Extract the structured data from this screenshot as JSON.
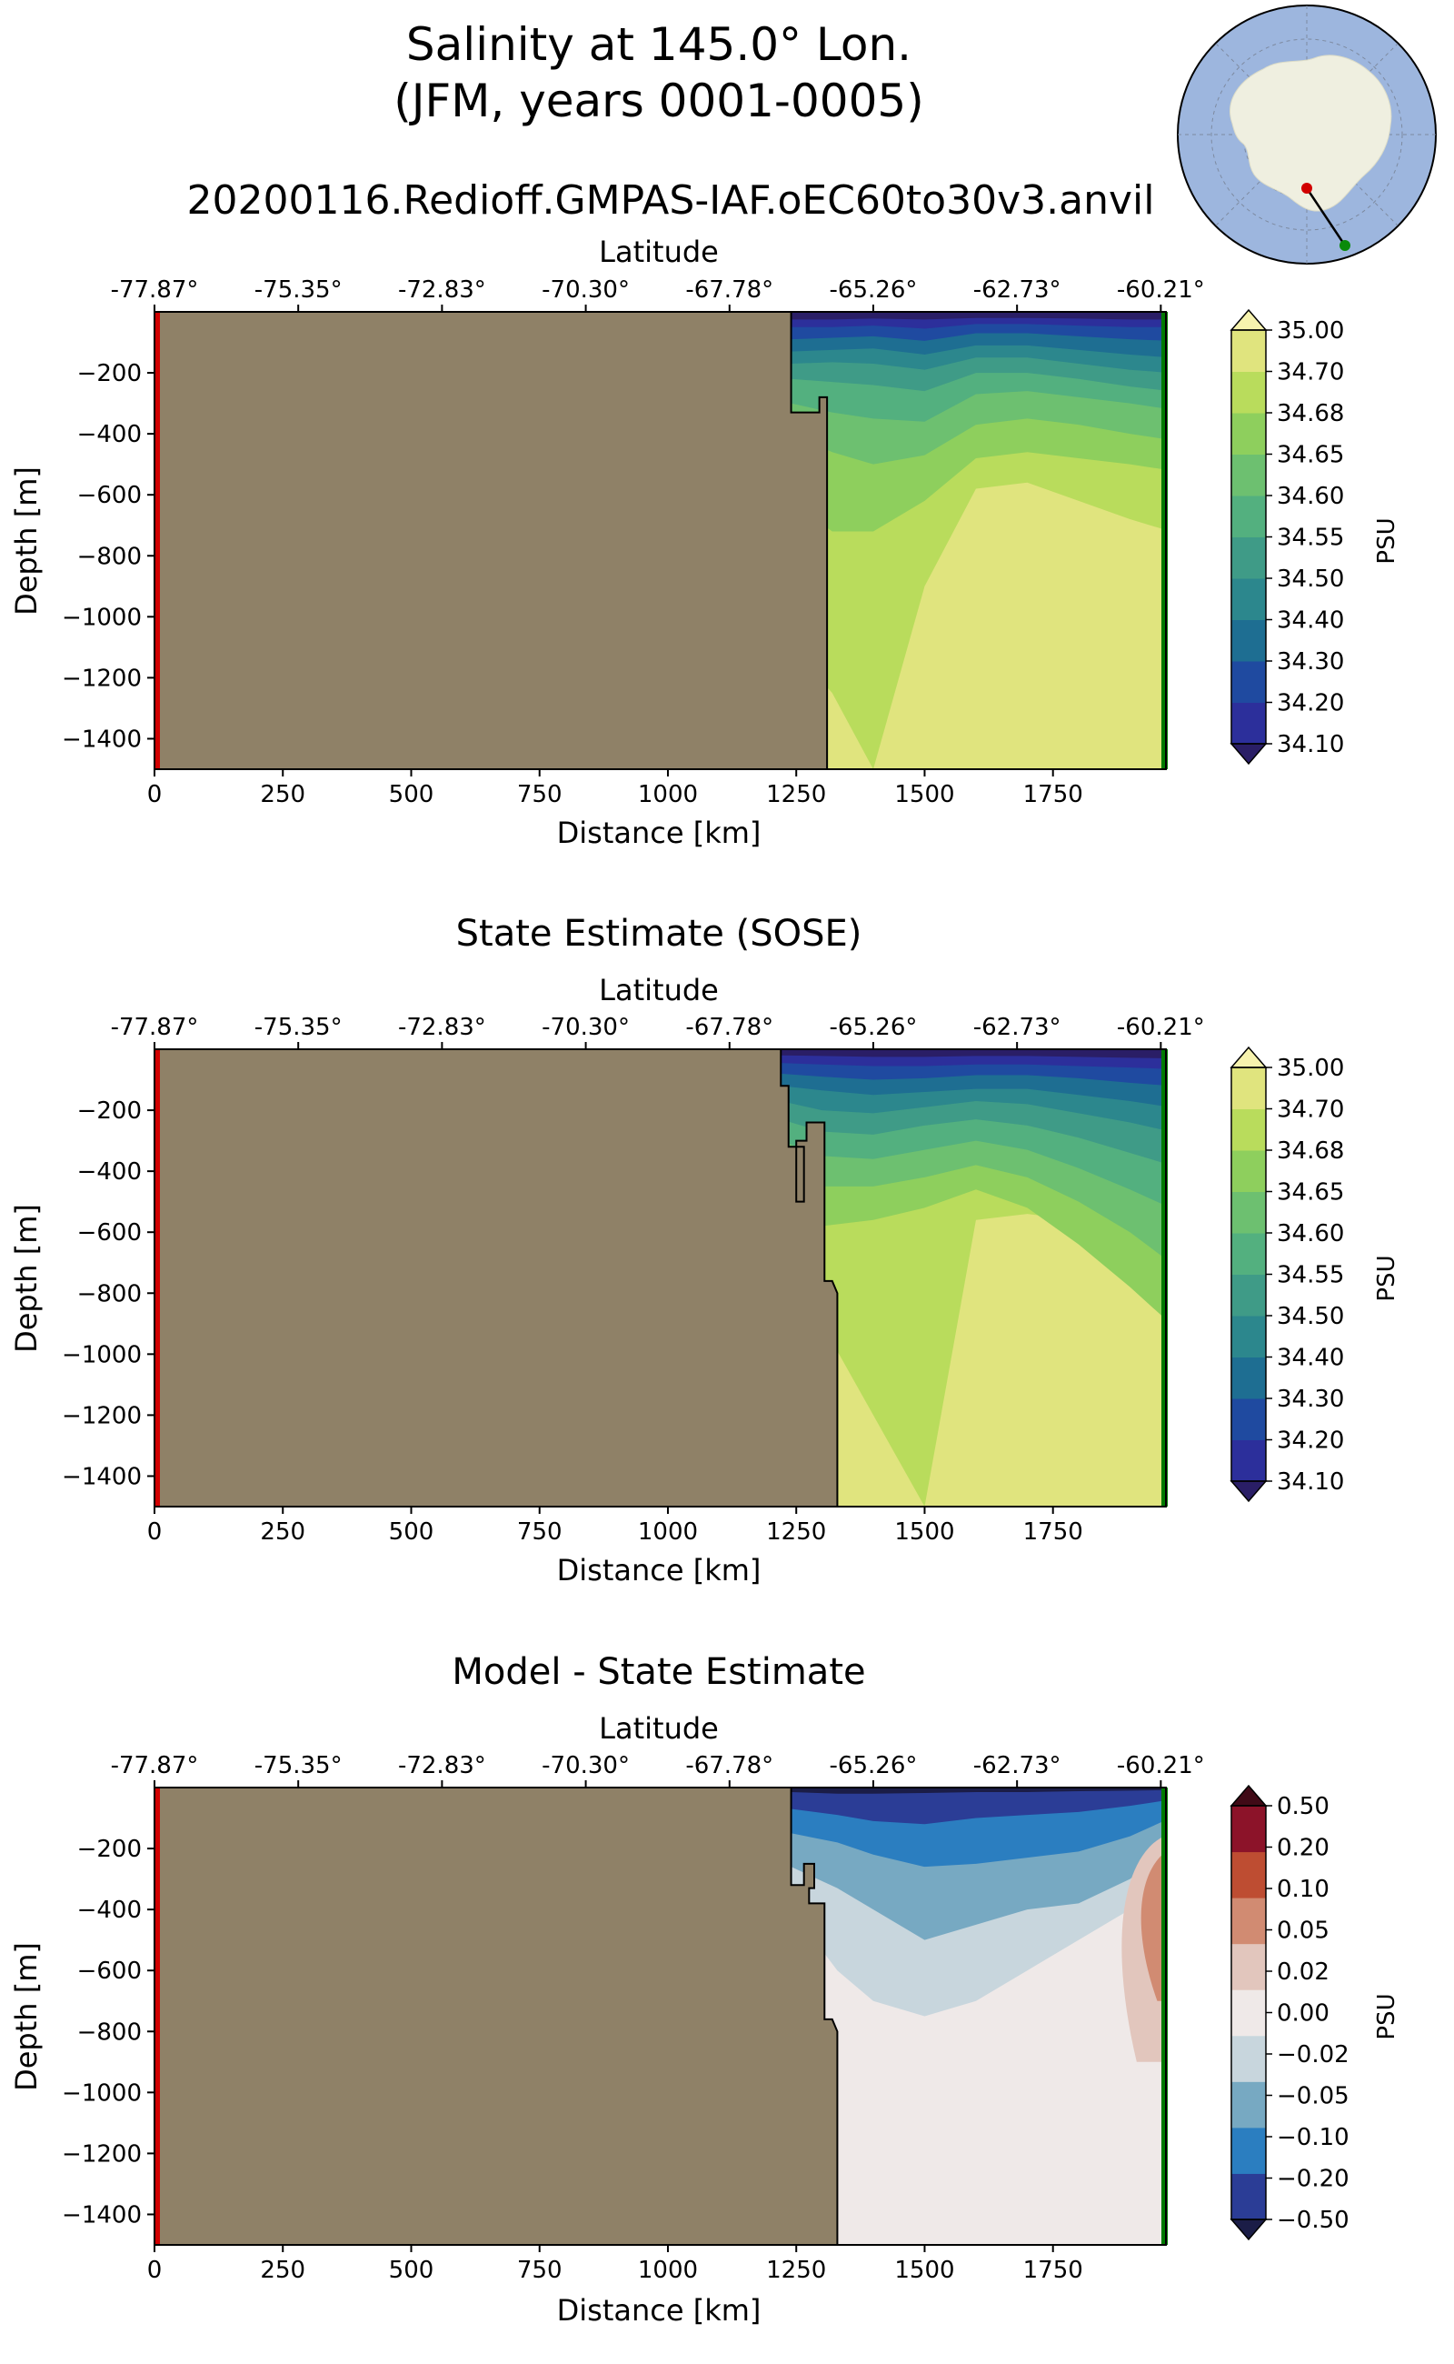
{
  "figure": {
    "title_line1": "Salinity at 145.0° Lon.",
    "title_line2": "(JFM, years 0001-0005)",
    "run_name": "20200116.Redioff.GMPAS-IAF.oEC60to30v3.anvil"
  },
  "colors": {
    "land": "#8f8167",
    "start_marker": "#d10000",
    "end_marker": "#007a00",
    "map_ocean": "#9db6de",
    "map_land": "#efefe0",
    "salinity_levels": [
      "#2a1e66",
      "#2c2f9b",
      "#1f4aa0",
      "#1e6e92",
      "#2c878d",
      "#3f9b87",
      "#53b07f",
      "#6dc070",
      "#8ecf5d",
      "#b9dc5c",
      "#e0e47e",
      "#f7f3ae"
    ],
    "diff_levels": [
      "#1b1d47",
      "#2b3d96",
      "#2b7ec0",
      "#77a9c2",
      "#c8d6dd",
      "#efe9e8",
      "#e2c6bd",
      "#d18b72",
      "#be4d32",
      "#8c1329",
      "#400a16"
    ]
  },
  "chart_data": [
    {
      "type": "heatmap",
      "title": "",
      "xlabel": "Distance [km]",
      "ylabel": "Depth [m]",
      "top_xlabel": "Latitude",
      "xlim": [
        0,
        1970
      ],
      "ylim": [
        -1500,
        0
      ],
      "x_ticks": [
        0,
        250,
        500,
        750,
        1000,
        1250,
        1500,
        1750
      ],
      "x_tick_labels": [
        "0",
        "250",
        "500",
        "750",
        "1000",
        "1250",
        "1500",
        "1750"
      ],
      "y_ticks": [
        -200,
        -400,
        -600,
        -800,
        -1000,
        -1200,
        -1400
      ],
      "y_tick_labels": [
        "−200",
        "−400",
        "−600",
        "−800",
        "−1000",
        "−1200",
        "−1400"
      ],
      "lat_ticks_km": [
        0,
        280,
        560,
        840,
        1120,
        1400,
        1680,
        1960
      ],
      "lat_tick_labels": [
        "-77.87°",
        "-75.35°",
        "-72.83°",
        "-70.30°",
        "-67.78°",
        "-65.26°",
        "-62.73°",
        "-60.21°"
      ],
      "colorbar": {
        "label": "PSU",
        "tick_labels": [
          "34.10",
          "34.20",
          "34.30",
          "34.40",
          "34.50",
          "34.55",
          "34.60",
          "34.65",
          "34.68",
          "34.70",
          "35.00"
        ]
      },
      "land_boundary": [
        [
          1240,
          0
        ],
        [
          1240,
          -330
        ],
        [
          1295,
          -330
        ],
        [
          1295,
          -280
        ],
        [
          1310,
          -280
        ],
        [
          1310,
          -1500
        ]
      ],
      "contour_depths": {
        "x": [
          1240,
          1320,
          1400,
          1500,
          1600,
          1700,
          1800,
          1900,
          1960
        ],
        "boundaries": [
          [
            -25,
            -25,
            -22,
            -25,
            -20,
            -20,
            -22,
            -25,
            -25
          ],
          [
            -50,
            -50,
            -45,
            -55,
            -40,
            -40,
            -45,
            -50,
            -50
          ],
          [
            -90,
            -85,
            -80,
            -95,
            -70,
            -70,
            -80,
            -90,
            -95
          ],
          [
            -130,
            -125,
            -120,
            -140,
            -110,
            -110,
            -125,
            -140,
            -150
          ],
          [
            -170,
            -165,
            -170,
            -190,
            -150,
            -150,
            -170,
            -190,
            -200
          ],
          [
            -220,
            -230,
            -240,
            -260,
            -200,
            -200,
            -220,
            -245,
            -260
          ],
          [
            -300,
            -330,
            -350,
            -360,
            -270,
            -260,
            -280,
            -300,
            -320
          ],
          [
            -400,
            -460,
            -500,
            -470,
            -370,
            -350,
            -370,
            -400,
            -420
          ],
          [
            -620,
            -720,
            -720,
            -620,
            -480,
            -460,
            -480,
            -500,
            -520
          ],
          [
            -1100,
            -1250,
            -1500,
            -900,
            -580,
            -560,
            -620,
            -680,
            -720
          ]
        ]
      }
    },
    {
      "type": "heatmap",
      "title": "State Estimate (SOSE)",
      "xlabel": "Distance [km]",
      "ylabel": "Depth [m]",
      "top_xlabel": "Latitude",
      "xlim": [
        0,
        1970
      ],
      "ylim": [
        -1500,
        0
      ],
      "x_ticks": [
        0,
        250,
        500,
        750,
        1000,
        1250,
        1500,
        1750
      ],
      "x_tick_labels": [
        "0",
        "250",
        "500",
        "750",
        "1000",
        "1250",
        "1500",
        "1750"
      ],
      "y_ticks": [
        -200,
        -400,
        -600,
        -800,
        -1000,
        -1200,
        -1400
      ],
      "y_tick_labels": [
        "−200",
        "−400",
        "−600",
        "−800",
        "−1000",
        "−1200",
        "−1400"
      ],
      "lat_ticks_km": [
        0,
        280,
        560,
        840,
        1120,
        1400,
        1680,
        1960
      ],
      "lat_tick_labels": [
        "-77.87°",
        "-75.35°",
        "-72.83°",
        "-70.30°",
        "-67.78°",
        "-65.26°",
        "-62.73°",
        "-60.21°"
      ],
      "colorbar": {
        "label": "PSU",
        "tick_labels": [
          "34.10",
          "34.20",
          "34.30",
          "34.40",
          "34.50",
          "34.55",
          "34.60",
          "34.65",
          "34.68",
          "34.70",
          "35.00"
        ]
      },
      "land_boundary": [
        [
          1220,
          0
        ],
        [
          1220,
          -120
        ],
        [
          1235,
          -120
        ],
        [
          1235,
          -320
        ],
        [
          1265,
          -320
        ],
        [
          1265,
          -500
        ],
        [
          1250,
          -500
        ],
        [
          1250,
          -300
        ],
        [
          1270,
          -300
        ],
        [
          1270,
          -240
        ],
        [
          1305,
          -240
        ],
        [
          1305,
          -760
        ],
        [
          1320,
          -760
        ],
        [
          1330,
          -800
        ],
        [
          1330,
          -1500
        ]
      ],
      "contour_depths": {
        "x": [
          1220,
          1300,
          1400,
          1500,
          1600,
          1700,
          1800,
          1900,
          1960
        ],
        "boundaries": [
          [
            -20,
            -22,
            -25,
            -25,
            -22,
            -22,
            -25,
            -28,
            -30
          ],
          [
            -45,
            -50,
            -55,
            -55,
            -50,
            -50,
            -55,
            -60,
            -65
          ],
          [
            -80,
            -90,
            -100,
            -95,
            -85,
            -85,
            -95,
            -110,
            -120
          ],
          [
            -120,
            -135,
            -150,
            -140,
            -130,
            -130,
            -150,
            -170,
            -190
          ],
          [
            -170,
            -200,
            -210,
            -190,
            -170,
            -180,
            -210,
            -240,
            -270
          ],
          [
            -230,
            -270,
            -280,
            -250,
            -230,
            -250,
            -290,
            -340,
            -380
          ],
          [
            -300,
            -350,
            -360,
            -330,
            -300,
            -330,
            -390,
            -460,
            -520
          ],
          [
            -400,
            -450,
            -450,
            -420,
            -380,
            -420,
            -500,
            -600,
            -700
          ],
          [
            -520,
            -580,
            -560,
            -520,
            -460,
            -520,
            -640,
            -780,
            -900
          ],
          [
            -700,
            -900,
            -1200,
            -1500,
            -560,
            -540,
            -560,
            -620,
            -700
          ]
        ]
      }
    },
    {
      "type": "heatmap",
      "title": "Model - State Estimate",
      "xlabel": "Distance [km]",
      "ylabel": "Depth [m]",
      "top_xlabel": "Latitude",
      "xlim": [
        0,
        1970
      ],
      "ylim": [
        -1500,
        0
      ],
      "x_ticks": [
        0,
        250,
        500,
        750,
        1000,
        1250,
        1500,
        1750
      ],
      "x_tick_labels": [
        "0",
        "250",
        "500",
        "750",
        "1000",
        "1250",
        "1500",
        "1750"
      ],
      "y_ticks": [
        -200,
        -400,
        -600,
        -800,
        -1000,
        -1200,
        -1400
      ],
      "y_tick_labels": [
        "−200",
        "−400",
        "−600",
        "−800",
        "−1000",
        "−1200",
        "−1400"
      ],
      "lat_ticks_km": [
        0,
        280,
        560,
        840,
        1120,
        1400,
        1680,
        1960
      ],
      "lat_tick_labels": [
        "-77.87°",
        "-75.35°",
        "-72.83°",
        "-70.30°",
        "-67.78°",
        "-65.26°",
        "-62.73°",
        "-60.21°"
      ],
      "colorbar": {
        "label": "PSU",
        "tick_labels": [
          "−0.50",
          "−0.20",
          "−0.10",
          "−0.05",
          "−0.02",
          "0.00",
          "0.02",
          "0.05",
          "0.10",
          "0.20",
          "0.50"
        ]
      },
      "land_boundary": [
        [
          1240,
          0
        ],
        [
          1240,
          -320
        ],
        [
          1265,
          -320
        ],
        [
          1265,
          -250
        ],
        [
          1285,
          -250
        ],
        [
          1285,
          -330
        ],
        [
          1275,
          -330
        ],
        [
          1275,
          -380
        ],
        [
          1305,
          -380
        ],
        [
          1305,
          -760
        ],
        [
          1320,
          -760
        ],
        [
          1330,
          -800
        ],
        [
          1330,
          -1500
        ]
      ],
      "contour_depths": {
        "x": [
          1240,
          1330,
          1400,
          1500,
          1600,
          1700,
          1800,
          1900,
          1960
        ],
        "boundaries": [
          [
            -15,
            -20,
            -20,
            -18,
            -15,
            -15,
            -12,
            -10,
            -8
          ],
          [
            -70,
            -90,
            -110,
            -120,
            -100,
            -90,
            -80,
            -60,
            -40
          ],
          [
            -150,
            -180,
            -220,
            -260,
            -250,
            -230,
            -210,
            -160,
            -100
          ],
          [
            -260,
            -330,
            -400,
            -500,
            -450,
            -400,
            -380,
            -300,
            -200
          ],
          [
            -400,
            -600,
            -700,
            -750,
            -700,
            -600,
            -500,
            -400,
            -300
          ]
        ],
        "positive_anomalies": [
          {
            "x_range": [
              1860,
              1960
            ],
            "top": -150,
            "bottom": -900,
            "level": "0.02"
          },
          {
            "x_range": [
              1900,
              1960
            ],
            "top": -200,
            "bottom": -700,
            "level": "0.05"
          }
        ]
      }
    }
  ],
  "inset_map": {
    "section_start": "red-dot",
    "section_end": "green-dot"
  }
}
